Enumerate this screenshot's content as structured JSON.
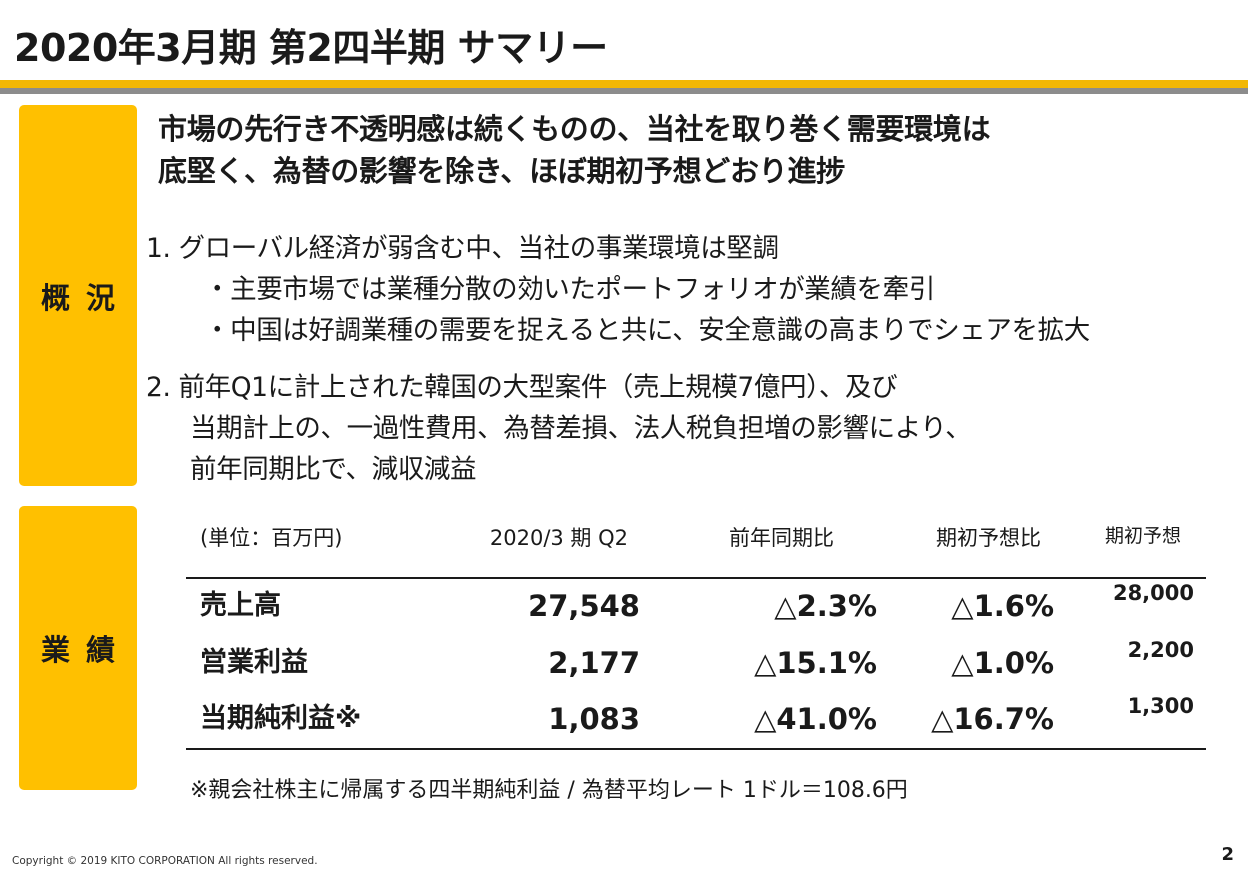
{
  "slide": {
    "title": "2020年3月期 第2四半期 サマリー",
    "page_number": "2",
    "copyright": "Copyright © 2019  KITO CORPORATION  All rights reserved.",
    "colors": {
      "accent": "#ffc000",
      "title_rule": "#f2b705",
      "title_rule_shadow": "#8c8c8c"
    }
  },
  "overview": {
    "label": "概況",
    "headline": [
      "市場の先行き不透明感は続くものの、当社を取り巻く需要環境は",
      "底堅く、為替の影響を除き、ほぼ期初予想どおり進捗"
    ],
    "point1": {
      "text": "1.  グローバル経済が弱含む中、当社の事業環境は堅調",
      "bullets": [
        "・主要市場では業種分散の効いたポートフォリオが業績を牽引",
        "・中国は好調業種の需要を捉えると共に、安全意識の高まりでシェアを拡大"
      ]
    },
    "point2": {
      "lines": [
        "2.  前年Q1に計上された韓国の大型案件（売上規模7億円）、及び",
        "当期計上の、一過性費用、為替差損、法人税負担増の影響により、",
        "前年同期比で、減収減益"
      ]
    }
  },
  "results": {
    "label": "業績",
    "header": {
      "unit": "(単位：百万円)",
      "period": "2020/3 期 Q2",
      "yoy": "前年同期比",
      "vs_plan": "期初予想比",
      "initial_forecast": "期初予想"
    },
    "rows": [
      {
        "label": "売上高",
        "value": "27,548",
        "yoy": "△2.3%",
        "vs_plan": "△1.6%",
        "initial_forecast": "28,000"
      },
      {
        "label": "営業利益",
        "value": "2,177",
        "yoy": "△15.1%",
        "vs_plan": "△1.0%",
        "initial_forecast": "2,200"
      },
      {
        "label": "当期純利益※",
        "value": "1,083",
        "yoy": "△41.0%",
        "vs_plan": "△16.7%",
        "initial_forecast": "1,300"
      }
    ],
    "footnote": "※親会社株主に帰属する四半期純利益  /  為替平均レート  1ドル＝108.6円"
  }
}
